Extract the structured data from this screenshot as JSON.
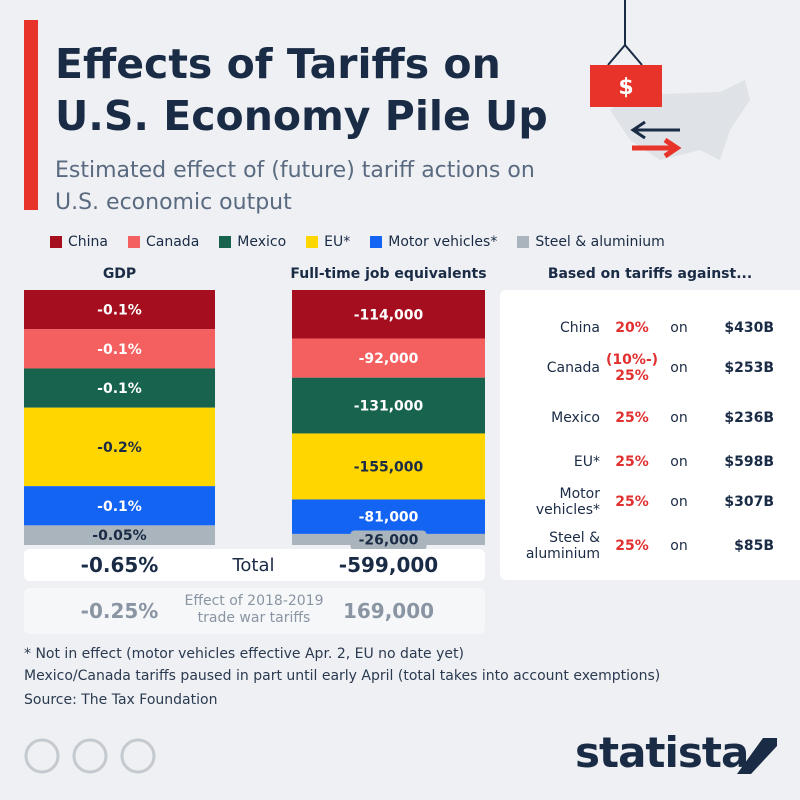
{
  "header": {
    "title": "Effects of Tariffs on U.S. Economy Pile Up",
    "subtitle": "Estimated effect of (future) tariff actions on U.S. economic output"
  },
  "chart_data": [
    {
      "type": "stacked-bar",
      "title": "GDP",
      "series": [
        {
          "name": "China",
          "color": "#a50e1e",
          "values": [
            -0.1
          ],
          "value_labels": [
            "-0.1%"
          ]
        },
        {
          "name": "Canada",
          "color": "#f45f5f",
          "values": [
            -0.1
          ],
          "value_labels": [
            "-0.1%"
          ]
        },
        {
          "name": "Mexico",
          "color": "#17634e",
          "values": [
            -0.1
          ],
          "value_labels": [
            "-0.1%"
          ]
        },
        {
          "name": "EU*",
          "color": "#ffd600",
          "values": [
            -0.2
          ],
          "value_labels": [
            "-0.2%"
          ]
        },
        {
          "name": "Motor vehicles*",
          "color": "#1464f4",
          "values": [
            -0.1
          ],
          "value_labels": [
            "-0.1%"
          ]
        },
        {
          "name": "Steel & aluminium",
          "color": "#a9b4bd",
          "values": [
            -0.05
          ],
          "value_labels": [
            "-0.05%"
          ]
        }
      ]
    },
    {
      "type": "stacked-bar",
      "title": "Full-time job equivalents",
      "series": [
        {
          "color": "#a50e1e",
          "values": [
            -114000
          ],
          "value_labels": [
            "-114,000"
          ]
        },
        {
          "color": "#f45f5f",
          "values": [
            -92000
          ],
          "value_labels": [
            "-92,000"
          ]
        },
        {
          "color": "#17634e",
          "values": [
            -131000
          ],
          "value_labels": [
            "-131,000"
          ]
        },
        {
          "color": "#ffd600",
          "values": [
            -155000
          ],
          "value_labels": [
            "-155,000"
          ]
        },
        {
          "color": "#1464f4",
          "values": [
            -81000
          ],
          "value_labels": [
            "-81,000"
          ]
        },
        {
          "color": "#a9b4bd",
          "values": [
            -26000
          ],
          "value_labels": [
            "-26,000"
          ]
        }
      ]
    }
  ],
  "totals": {
    "label": "Total",
    "gdp": "-0.65%",
    "jobs": "-599,000"
  },
  "trade_war": {
    "label": "Effect of 2018-2019 trade war tariffs",
    "gdp": "-0.25%",
    "jobs": "169,000"
  },
  "table": {
    "title": "Based on tariffs against...",
    "rows": [
      [
        "China",
        "20%",
        "on",
        "$430B"
      ],
      [
        "Canada",
        "(10%-) 25%",
        "on",
        "$253B"
      ],
      [
        "Mexico",
        "25%",
        "on",
        "$236B"
      ],
      [
        "EU*",
        "25%",
        "on",
        "$598B"
      ],
      [
        "Motor vehicles*",
        "25%",
        "on",
        "$307B"
      ],
      [
        "Steel & aluminium",
        "25%",
        "on",
        "$85B"
      ]
    ]
  },
  "notes": [
    "* Not in effect (motor vehicles effective Apr. 2, EU no date yet)",
    "Mexico/Canada tariffs paused in part until early April (total takes into account exemptions)"
  ],
  "source": "Source: The Tax Foundation",
  "logo": "statista"
}
